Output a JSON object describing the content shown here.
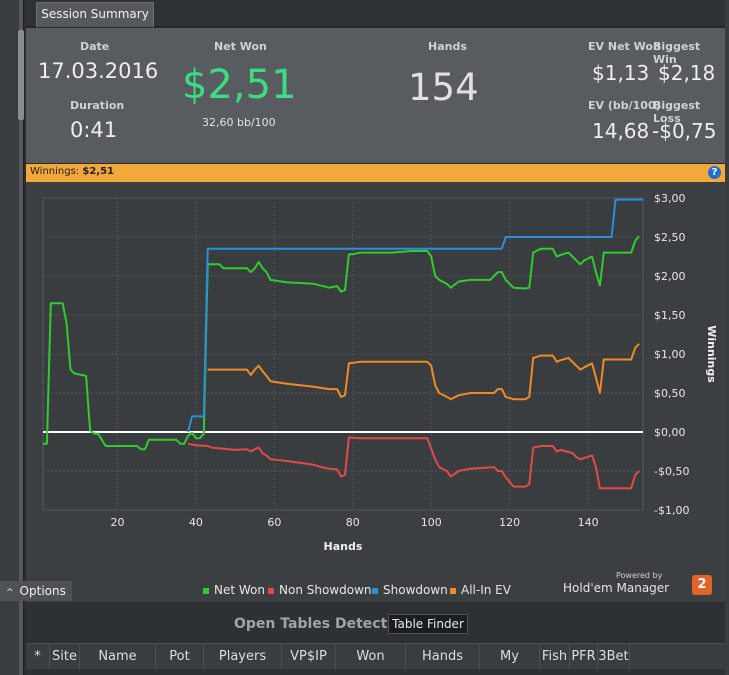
{
  "tab": {
    "label": "Session Summary"
  },
  "summary": {
    "date_label": "Date",
    "date_value": "17.03.2016",
    "duration_label": "Duration",
    "duration_value": "0:41",
    "net_won_label": "Net Won",
    "net_won_value": "$2,51",
    "bb_per_100": "32,60 bb/100",
    "hands_label": "Hands",
    "hands_value": "154",
    "ev_net_won_label": "EV Net Won",
    "ev_net_won_value": "$1,13",
    "biggest_win_label": "Biggest Win",
    "biggest_win_value": "$2,18",
    "ev_bb100_label": "EV (bb/100)",
    "ev_bb100_value": "14,68",
    "biggest_loss_label": "Biggest Loss",
    "biggest_loss_value": "-$0,75"
  },
  "banner": {
    "label": "Winnings:",
    "value": "$2,51",
    "help_icon": "?"
  },
  "options_label": "Options",
  "legend": [
    {
      "name": "Net Won",
      "color": "#2ecc2e"
    },
    {
      "name": "Non Showdown",
      "color": "#e04a4a"
    },
    {
      "name": "Showdown",
      "color": "#2a8fd8"
    },
    {
      "name": "All-In EV",
      "color": "#f08a24"
    }
  ],
  "brand": {
    "powered_by": "Powered by",
    "name": "Hold'em Manager",
    "logo": "2"
  },
  "open_tables": {
    "title": "Open Tables Detected",
    "finder_label": "Table Finder"
  },
  "table_headers": [
    "*",
    "Site",
    "Name",
    "Pot",
    "Players",
    "VP$IP",
    "Won",
    "Hands",
    "My VP$IP",
    "Fish",
    "PFR",
    "3Bet"
  ],
  "chart_data": {
    "type": "line",
    "xlabel": "Hands",
    "ylabel": "Winnings",
    "xlim": [
      1,
      154
    ],
    "ylim": [
      -1.0,
      3.0
    ],
    "x_ticks": [
      20,
      40,
      60,
      80,
      100,
      120,
      140
    ],
    "y_ticks": [
      3.0,
      2.5,
      2.0,
      1.5,
      1.0,
      0.5,
      0.0,
      -0.5,
      -1.0
    ],
    "y_tick_labels": [
      "$3,00",
      "$2,50",
      "$2,00",
      "$1,50",
      "$1,00",
      "$0,50",
      "$0,00",
      "-$0,50",
      "-$1,00"
    ],
    "x_tick_labels": [
      "20",
      "40",
      "60",
      "80",
      "100",
      "120",
      "140"
    ],
    "series": [
      {
        "name": "Net Won",
        "color": "#2ecc2e",
        "points": [
          [
            1,
            -0.15
          ],
          [
            2,
            -0.15
          ],
          [
            3,
            1.65
          ],
          [
            6,
            1.65
          ],
          [
            7,
            1.4
          ],
          [
            8,
            0.8
          ],
          [
            9,
            0.75
          ],
          [
            12,
            0.72
          ],
          [
            13,
            0.02
          ],
          [
            14,
            -0.02
          ],
          [
            15,
            -0.02
          ],
          [
            16,
            -0.1
          ],
          [
            17,
            -0.18
          ],
          [
            25,
            -0.18
          ],
          [
            26,
            -0.22
          ],
          [
            27,
            -0.22
          ],
          [
            28,
            -0.1
          ],
          [
            35,
            -0.1
          ],
          [
            36,
            -0.15
          ],
          [
            37,
            -0.15
          ],
          [
            38,
            -0.05
          ],
          [
            39,
            -0.01
          ],
          [
            40,
            -0.08
          ],
          [
            41,
            -0.08
          ],
          [
            42,
            -0.02
          ],
          [
            43,
            2.15
          ],
          [
            46,
            2.15
          ],
          [
            47,
            2.1
          ],
          [
            53,
            2.1
          ],
          [
            54,
            2.05
          ],
          [
            55,
            2.1
          ],
          [
            56,
            2.18
          ],
          [
            57,
            2.1
          ],
          [
            58,
            2.05
          ],
          [
            59,
            1.95
          ],
          [
            63,
            1.92
          ],
          [
            70,
            1.9
          ],
          [
            74,
            1.85
          ],
          [
            76,
            1.87
          ],
          [
            77,
            1.8
          ],
          [
            78,
            1.82
          ],
          [
            79,
            2.28
          ],
          [
            80,
            2.28
          ],
          [
            82,
            2.3
          ],
          [
            90,
            2.3
          ],
          [
            95,
            2.32
          ],
          [
            99,
            2.32
          ],
          [
            100,
            2.25
          ],
          [
            101,
            2.0
          ],
          [
            102,
            1.95
          ],
          [
            104,
            1.9
          ],
          [
            105,
            1.85
          ],
          [
            107,
            1.93
          ],
          [
            110,
            1.95
          ],
          [
            115,
            1.95
          ],
          [
            117,
            2.05
          ],
          [
            118,
            2.05
          ],
          [
            119,
            1.95
          ],
          [
            121,
            1.85
          ],
          [
            124,
            1.84
          ],
          [
            125,
            1.85
          ],
          [
            126,
            2.3
          ],
          [
            128,
            2.35
          ],
          [
            131,
            2.35
          ],
          [
            132,
            2.25
          ],
          [
            133,
            2.27
          ],
          [
            135,
            2.3
          ],
          [
            136,
            2.25
          ],
          [
            137,
            2.2
          ],
          [
            138,
            2.15
          ],
          [
            139,
            2.2
          ],
          [
            141,
            2.25
          ],
          [
            142,
            2.05
          ],
          [
            143,
            1.88
          ],
          [
            144,
            2.3
          ],
          [
            151,
            2.3
          ],
          [
            152,
            2.45
          ],
          [
            153,
            2.51
          ]
        ]
      },
      {
        "name": "Non Showdown",
        "color": "#e04a4a",
        "points": [
          [
            38,
            -0.15
          ],
          [
            40,
            -0.17
          ],
          [
            43,
            -0.18
          ],
          [
            44,
            -0.2
          ],
          [
            50,
            -0.23
          ],
          [
            53,
            -0.22
          ],
          [
            54,
            -0.25
          ],
          [
            55,
            -0.22
          ],
          [
            56,
            -0.2
          ],
          [
            57,
            -0.27
          ],
          [
            58,
            -0.3
          ],
          [
            59,
            -0.35
          ],
          [
            63,
            -0.37
          ],
          [
            70,
            -0.42
          ],
          [
            72,
            -0.45
          ],
          [
            74,
            -0.47
          ],
          [
            76,
            -0.48
          ],
          [
            77,
            -0.57
          ],
          [
            78,
            -0.55
          ],
          [
            79,
            -0.07
          ],
          [
            82,
            -0.08
          ],
          [
            90,
            -0.08
          ],
          [
            99,
            -0.08
          ],
          [
            101,
            -0.35
          ],
          [
            102,
            -0.45
          ],
          [
            104,
            -0.5
          ],
          [
            105,
            -0.57
          ],
          [
            107,
            -0.5
          ],
          [
            110,
            -0.47
          ],
          [
            116,
            -0.45
          ],
          [
            117,
            -0.5
          ],
          [
            118,
            -0.5
          ],
          [
            119,
            -0.58
          ],
          [
            121,
            -0.7
          ],
          [
            124,
            -0.7
          ],
          [
            125,
            -0.67
          ],
          [
            126,
            -0.2
          ],
          [
            128,
            -0.18
          ],
          [
            131,
            -0.18
          ],
          [
            132,
            -0.25
          ],
          [
            133,
            -0.23
          ],
          [
            136,
            -0.27
          ],
          [
            137,
            -0.32
          ],
          [
            138,
            -0.35
          ],
          [
            141,
            -0.3
          ],
          [
            142,
            -0.45
          ],
          [
            143,
            -0.72
          ],
          [
            150,
            -0.72
          ],
          [
            151,
            -0.72
          ],
          [
            152,
            -0.55
          ],
          [
            153,
            -0.5
          ]
        ]
      },
      {
        "name": "Showdown",
        "color": "#2a8fd8",
        "points": [
          [
            38,
            0.0
          ],
          [
            39,
            0.2
          ],
          [
            42,
            0.2
          ],
          [
            43,
            2.35
          ],
          [
            118,
            2.35
          ],
          [
            119,
            2.5
          ],
          [
            146,
            2.5
          ],
          [
            147,
            2.98
          ],
          [
            154,
            2.98
          ]
        ]
      },
      {
        "name": "All-In EV",
        "color": "#f08a24",
        "points": [
          [
            43,
            0.8
          ],
          [
            46,
            0.8
          ],
          [
            53,
            0.8
          ],
          [
            54,
            0.73
          ],
          [
            55,
            0.8
          ],
          [
            56,
            0.85
          ],
          [
            57,
            0.78
          ],
          [
            58,
            0.72
          ],
          [
            59,
            0.65
          ],
          [
            63,
            0.62
          ],
          [
            70,
            0.58
          ],
          [
            74,
            0.55
          ],
          [
            76,
            0.55
          ],
          [
            77,
            0.45
          ],
          [
            78,
            0.47
          ],
          [
            79,
            0.88
          ],
          [
            82,
            0.9
          ],
          [
            90,
            0.9
          ],
          [
            99,
            0.9
          ],
          [
            100,
            0.85
          ],
          [
            101,
            0.6
          ],
          [
            102,
            0.5
          ],
          [
            104,
            0.45
          ],
          [
            105,
            0.42
          ],
          [
            107,
            0.47
          ],
          [
            110,
            0.5
          ],
          [
            116,
            0.5
          ],
          [
            117,
            0.55
          ],
          [
            118,
            0.55
          ],
          [
            119,
            0.45
          ],
          [
            121,
            0.42
          ],
          [
            124,
            0.42
          ],
          [
            125,
            0.45
          ],
          [
            126,
            0.95
          ],
          [
            128,
            0.98
          ],
          [
            131,
            0.98
          ],
          [
            132,
            0.9
          ],
          [
            133,
            0.92
          ],
          [
            135,
            0.95
          ],
          [
            136,
            0.9
          ],
          [
            137,
            0.85
          ],
          [
            138,
            0.8
          ],
          [
            139,
            0.83
          ],
          [
            141,
            0.88
          ],
          [
            142,
            0.7
          ],
          [
            143,
            0.5
          ],
          [
            144,
            0.93
          ],
          [
            151,
            0.93
          ],
          [
            152,
            1.08
          ],
          [
            153,
            1.13
          ]
        ]
      }
    ]
  }
}
